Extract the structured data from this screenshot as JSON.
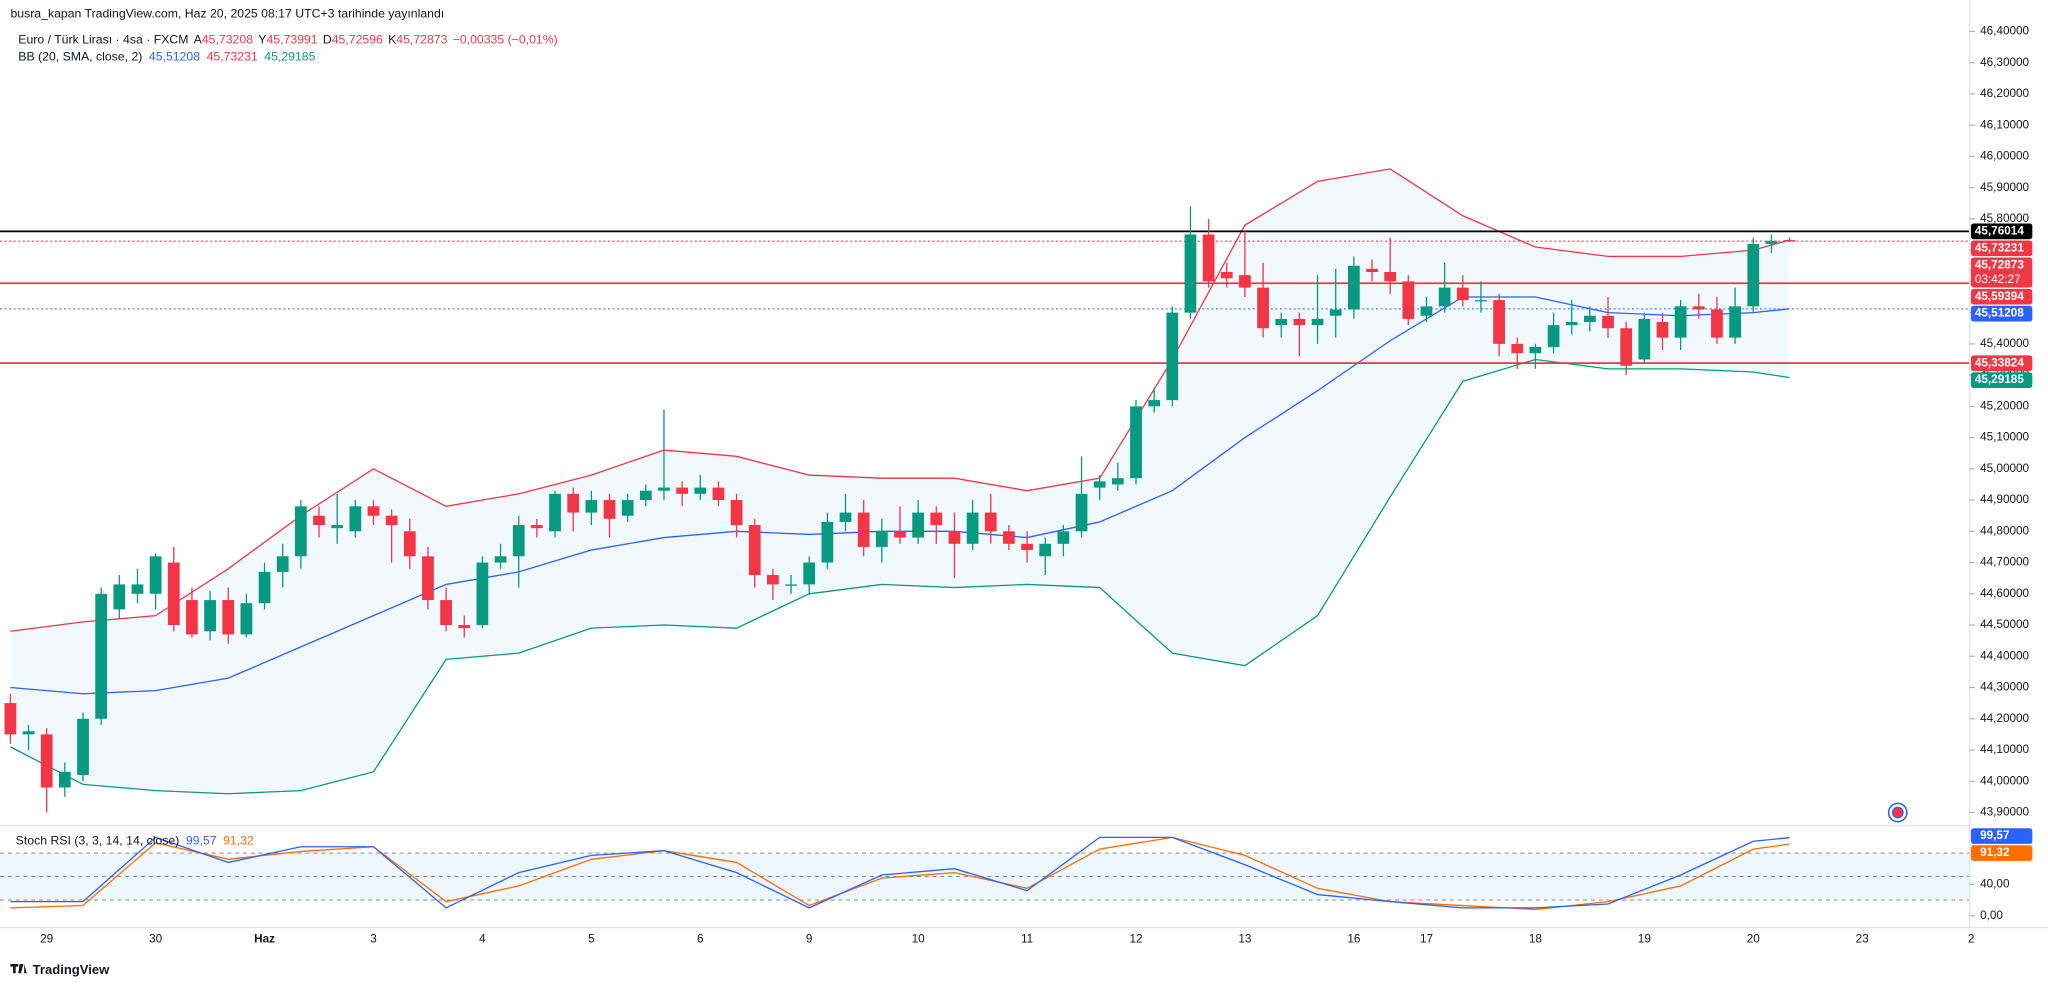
{
  "chart_data": {
    "type": "candlestick",
    "publisher": "busra_kapan TradingView.com, Haz 20, 2025 08:17 UTC+3 tarihinde yayınlandı",
    "symbol": "Euro / Türk Lirası · 4sa · FXCM",
    "ohlc_legend": [
      {
        "key": "A",
        "value": "45,73208"
      },
      {
        "key": "Y",
        "value": "45,73991"
      },
      {
        "key": "D",
        "value": "45,72596"
      },
      {
        "key": "K",
        "value": "45,72873"
      }
    ],
    "change": "−0,00335 (−0,01%)",
    "up_color": "#089981",
    "down_color": "#f23645",
    "ylim": [
      43.858,
      46.425
    ],
    "yticks": [
      {
        "value": 46.4,
        "label": "46,40000"
      },
      {
        "value": 46.3,
        "label": "46,30000"
      },
      {
        "value": 46.2,
        "label": "46,20000"
      },
      {
        "value": 46.1,
        "label": "46,10000"
      },
      {
        "value": 46.0,
        "label": "46,00000"
      },
      {
        "value": 45.9,
        "label": "45,90000"
      },
      {
        "value": 45.8,
        "label": "45,80000"
      },
      {
        "value": 45.7,
        "label": "45,70000"
      },
      {
        "value": 45.6,
        "label": "45,60000"
      },
      {
        "value": 45.5,
        "label": "45,50000"
      },
      {
        "value": 45.4,
        "label": "45,40000"
      },
      {
        "value": 45.3,
        "label": "45,30000"
      },
      {
        "value": 45.2,
        "label": "45,20000"
      },
      {
        "value": 45.1,
        "label": "45,10000"
      },
      {
        "value": 45.0,
        "label": "45,00000"
      },
      {
        "value": 44.9,
        "label": "44,90000"
      },
      {
        "value": 44.8,
        "label": "44,80000"
      },
      {
        "value": 44.7,
        "label": "44,70000"
      },
      {
        "value": 44.6,
        "label": "44,60000"
      },
      {
        "value": 44.5,
        "label": "44,50000"
      },
      {
        "value": 44.4,
        "label": "44,40000"
      },
      {
        "value": 44.3,
        "label": "44,30000"
      },
      {
        "value": 44.2,
        "label": "44,20000"
      },
      {
        "value": 44.1,
        "label": "44,10000"
      },
      {
        "value": 44.0,
        "label": "44,00000"
      },
      {
        "value": 43.9,
        "label": "43,90000"
      }
    ],
    "categories": [
      null,
      null,
      "29",
      null,
      null,
      null,
      null,
      null,
      "30",
      null,
      null,
      null,
      null,
      null,
      "Haz",
      null,
      null,
      null,
      null,
      null,
      "3",
      null,
      null,
      null,
      null,
      null,
      "4",
      null,
      null,
      null,
      null,
      null,
      "5",
      null,
      null,
      null,
      null,
      null,
      "6",
      null,
      null,
      null,
      null,
      null,
      "9",
      null,
      null,
      null,
      null,
      null,
      "10",
      null,
      null,
      null,
      null,
      null,
      "11",
      null,
      null,
      null,
      null,
      null,
      "12",
      null,
      null,
      null,
      null,
      null,
      "13",
      null,
      null,
      null,
      null,
      null,
      "16",
      null,
      null,
      null,
      "17",
      null,
      null,
      null,
      null,
      null,
      "18",
      null,
      null,
      null,
      null,
      null,
      "19",
      null,
      null,
      null,
      null,
      null,
      "20",
      null,
      null,
      null,
      null,
      null,
      "23",
      null,
      null,
      null,
      null,
      null,
      "2"
    ],
    "ohlc": [
      [
        44.25,
        44.28,
        44.12,
        44.15
      ],
      [
        44.15,
        44.18,
        44.1,
        44.16
      ],
      [
        44.15,
        44.17,
        43.9,
        43.98
      ],
      [
        43.98,
        44.06,
        43.95,
        44.03
      ],
      [
        44.02,
        44.22,
        44.0,
        44.2
      ],
      [
        44.2,
        44.62,
        44.18,
        44.6
      ],
      [
        44.55,
        44.66,
        44.52,
        44.63
      ],
      [
        44.6,
        44.68,
        44.57,
        44.63
      ],
      [
        44.6,
        44.73,
        44.55,
        44.72
      ],
      [
        44.7,
        44.75,
        44.48,
        44.5
      ],
      [
        44.58,
        44.62,
        44.46,
        44.47
      ],
      [
        44.48,
        44.61,
        44.45,
        44.58
      ],
      [
        44.58,
        44.62,
        44.44,
        44.47
      ],
      [
        44.47,
        44.6,
        44.46,
        44.57
      ],
      [
        44.57,
        44.7,
        44.55,
        44.67
      ],
      [
        44.67,
        44.76,
        44.62,
        44.72
      ],
      [
        44.72,
        44.9,
        44.68,
        44.88
      ],
      [
        44.85,
        44.88,
        44.78,
        44.82
      ],
      [
        44.81,
        44.92,
        44.76,
        44.82
      ],
      [
        44.8,
        44.9,
        44.78,
        44.88
      ],
      [
        44.88,
        44.9,
        44.82,
        44.85
      ],
      [
        44.85,
        44.87,
        44.7,
        44.82
      ],
      [
        44.8,
        44.84,
        44.68,
        44.72
      ],
      [
        44.72,
        44.75,
        44.55,
        44.58
      ],
      [
        44.58,
        44.62,
        44.48,
        44.5
      ],
      [
        44.5,
        44.53,
        44.46,
        44.49
      ],
      [
        44.5,
        44.72,
        44.49,
        44.7
      ],
      [
        44.7,
        44.76,
        44.68,
        44.72
      ],
      [
        44.72,
        44.85,
        44.62,
        44.82
      ],
      [
        44.82,
        44.84,
        44.78,
        44.81
      ],
      [
        44.8,
        44.93,
        44.78,
        44.92
      ],
      [
        44.92,
        44.94,
        44.8,
        44.86
      ],
      [
        44.86,
        44.93,
        44.82,
        44.9
      ],
      [
        44.9,
        44.92,
        44.78,
        44.84
      ],
      [
        44.85,
        44.92,
        44.83,
        44.9
      ],
      [
        44.9,
        44.95,
        44.88,
        44.93
      ],
      [
        44.93,
        45.19,
        44.9,
        44.94
      ],
      [
        44.94,
        44.96,
        44.88,
        44.92
      ],
      [
        44.92,
        44.98,
        44.9,
        44.94
      ],
      [
        44.94,
        44.96,
        44.88,
        44.9
      ],
      [
        44.9,
        44.92,
        44.78,
        44.82
      ],
      [
        44.82,
        44.84,
        44.62,
        44.66
      ],
      [
        44.66,
        44.68,
        44.58,
        44.63
      ],
      [
        44.63,
        44.66,
        44.6,
        44.63
      ],
      [
        44.63,
        44.72,
        44.6,
        44.7
      ],
      [
        44.7,
        44.86,
        44.68,
        44.83
      ],
      [
        44.83,
        44.92,
        44.8,
        44.86
      ],
      [
        44.86,
        44.9,
        44.72,
        44.75
      ],
      [
        44.75,
        44.84,
        44.7,
        44.8
      ],
      [
        44.8,
        44.88,
        44.76,
        44.78
      ],
      [
        44.78,
        44.9,
        44.76,
        44.86
      ],
      [
        44.86,
        44.88,
        44.76,
        44.82
      ],
      [
        44.8,
        44.86,
        44.65,
        44.76
      ],
      [
        44.76,
        44.9,
        44.74,
        44.86
      ],
      [
        44.86,
        44.92,
        44.76,
        44.8
      ],
      [
        44.8,
        44.82,
        44.74,
        44.76
      ],
      [
        44.76,
        44.8,
        44.7,
        44.74
      ],
      [
        44.72,
        44.78,
        44.66,
        44.76
      ],
      [
        44.76,
        44.82,
        44.72,
        44.8
      ],
      [
        44.8,
        45.04,
        44.78,
        44.92
      ],
      [
        44.94,
        44.98,
        44.9,
        44.96
      ],
      [
        44.95,
        45.02,
        44.93,
        44.97
      ],
      [
        44.97,
        45.22,
        44.95,
        45.2
      ],
      [
        45.2,
        45.26,
        45.18,
        45.22
      ],
      [
        45.22,
        45.52,
        45.2,
        45.5
      ],
      [
        45.5,
        45.84,
        45.48,
        45.75
      ],
      [
        45.75,
        45.8,
        45.58,
        45.6
      ],
      [
        45.63,
        45.66,
        45.58,
        45.61
      ],
      [
        45.62,
        45.76,
        45.55,
        45.58
      ],
      [
        45.58,
        45.66,
        45.42,
        45.45
      ],
      [
        45.46,
        45.5,
        45.42,
        45.48
      ],
      [
        45.48,
        45.5,
        45.36,
        45.46
      ],
      [
        45.46,
        45.62,
        45.4,
        45.48
      ],
      [
        45.49,
        45.64,
        45.42,
        45.51
      ],
      [
        45.51,
        45.68,
        45.48,
        45.65
      ],
      [
        45.64,
        45.67,
        45.6,
        45.63
      ],
      [
        45.63,
        45.74,
        45.56,
        45.6
      ],
      [
        45.6,
        45.62,
        45.46,
        45.48
      ],
      [
        45.49,
        45.55,
        45.47,
        45.52
      ],
      [
        45.52,
        45.66,
        45.5,
        45.58
      ],
      [
        45.58,
        45.62,
        45.52,
        45.54
      ],
      [
        45.54,
        45.6,
        45.5,
        45.54
      ],
      [
        45.54,
        45.56,
        45.36,
        45.4
      ],
      [
        45.4,
        45.42,
        45.32,
        45.37
      ],
      [
        45.37,
        45.4,
        45.32,
        45.39
      ],
      [
        45.39,
        45.5,
        45.37,
        45.46
      ],
      [
        45.46,
        45.54,
        45.43,
        45.47
      ],
      [
        45.47,
        45.52,
        45.44,
        45.49
      ],
      [
        45.49,
        45.55,
        45.42,
        45.45
      ],
      [
        45.45,
        45.47,
        45.3,
        45.33
      ],
      [
        45.35,
        45.5,
        45.34,
        45.48
      ],
      [
        45.47,
        45.5,
        45.38,
        45.42
      ],
      [
        45.42,
        45.54,
        45.38,
        45.52
      ],
      [
        45.52,
        45.56,
        45.48,
        45.51
      ],
      [
        45.51,
        45.55,
        45.4,
        45.42
      ],
      [
        45.42,
        45.58,
        45.4,
        45.52
      ],
      [
        45.52,
        45.74,
        45.5,
        45.72
      ],
      [
        45.72,
        45.75,
        45.69,
        45.73
      ],
      [
        45.73208,
        45.73991,
        45.72596,
        45.72873
      ]
    ],
    "bollinger": {
      "name": "BB (20, SMA, close, 2)",
      "fill": "rgba(33,150,243,0.06)",
      "x": [
        0,
        4,
        8,
        12,
        16,
        20,
        24,
        28,
        32,
        36,
        40,
        44,
        48,
        52,
        56,
        60,
        64,
        68,
        72,
        76,
        80,
        84,
        88,
        92,
        96,
        98
      ],
      "middle": {
        "color": "#2962ff",
        "label": "45,51208",
        "values": [
          44.3,
          44.28,
          44.29,
          44.33,
          44.43,
          44.53,
          44.63,
          44.67,
          44.74,
          44.78,
          44.8,
          44.79,
          44.8,
          44.8,
          44.78,
          44.83,
          44.93,
          45.1,
          45.25,
          45.41,
          45.55,
          45.55,
          45.5,
          45.49,
          45.5,
          45.51208
        ]
      },
      "upper": {
        "color": "#f23645",
        "label": "45,73231",
        "values": [
          44.48,
          44.51,
          44.53,
          44.68,
          44.85,
          45.0,
          44.88,
          44.92,
          44.98,
          45.06,
          45.04,
          44.98,
          44.97,
          44.97,
          44.93,
          44.97,
          45.35,
          45.78,
          45.92,
          45.96,
          45.81,
          45.71,
          45.68,
          45.68,
          45.7,
          45.73231
        ]
      },
      "lower": {
        "color": "#089981",
        "label": "45,29185",
        "values": [
          44.11,
          43.99,
          43.97,
          43.96,
          43.97,
          44.03,
          44.39,
          44.41,
          44.49,
          44.5,
          44.49,
          44.6,
          44.63,
          44.62,
          44.63,
          44.62,
          44.41,
          44.37,
          44.53,
          44.91,
          45.28,
          45.35,
          45.32,
          45.32,
          45.31,
          45.29185
        ]
      }
    },
    "levels": [
      {
        "value": 45.76014,
        "label": "45,76014",
        "color": "#000000",
        "line": "solid"
      },
      {
        "value": 45.73231,
        "label": "45,73231",
        "color": "#f23645",
        "line": "none"
      },
      {
        "value": 45.72873,
        "label": "45,72873",
        "countdown": "03:42:27",
        "color": "#f23645",
        "line": "dotted"
      },
      {
        "value": 45.59394,
        "label": "45,59394",
        "color": "#f23645",
        "line": "solid"
      },
      {
        "value": 45.51208,
        "label": "45,51208",
        "color": "#2962ff",
        "line": "dotted"
      },
      {
        "value": 45.33824,
        "label": "45,33824",
        "color": "#f23645",
        "line": "solid"
      },
      {
        "value": 45.29185,
        "label": "45,29185",
        "color": "#089981",
        "line": "none"
      }
    ],
    "stoch": {
      "name": "Stoch RSI (3, 3, 14, 14, close)",
      "ylim": [
        -15,
        115
      ],
      "yticks": [
        {
          "value": 40,
          "label": "40,00"
        },
        {
          "value": 0,
          "label": "0,00"
        }
      ],
      "levels": [
        80,
        50,
        20
      ],
      "x": [
        0,
        4,
        8,
        12,
        16,
        20,
        24,
        28,
        32,
        36,
        40,
        44,
        48,
        52,
        56,
        60,
        64,
        68,
        72,
        76,
        80,
        84,
        88,
        92,
        96,
        98
      ],
      "series": [
        {
          "color": "#2962ff",
          "label": "99,57",
          "values": [
            18,
            18,
            100,
            68,
            88,
            88,
            10,
            55,
            77,
            83,
            55,
            10,
            52,
            60,
            32,
            100,
            100,
            65,
            27,
            18,
            10,
            10,
            15,
            52,
            95,
            99.57
          ]
        },
        {
          "color": "#ff6d00",
          "label": "91,32",
          "values": [
            10,
            13,
            93,
            72,
            82,
            88,
            18,
            38,
            72,
            83,
            68,
            13,
            48,
            55,
            35,
            85,
            100,
            77,
            35,
            18,
            13,
            8,
            18,
            38,
            85,
            91.32
          ]
        }
      ]
    },
    "brand": "TradingView"
  }
}
